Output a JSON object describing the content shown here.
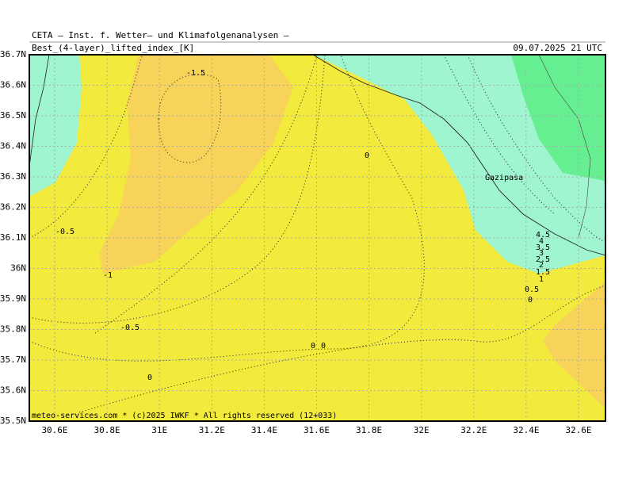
{
  "header": {
    "institute": "CETA – Inst. f. Wetter– und Klimafolgenanalysen –",
    "field": "Best_(4-layer)_lifted_index_[K]",
    "valid_time": "09.07.2025 21 UTC"
  },
  "map": {
    "lat_labels": [
      "36.7N",
      "36.6N",
      "36.5N",
      "36.4N",
      "36.3N",
      "36.2N",
      "36.1N",
      "36N",
      "35.9N",
      "35.8N",
      "35.7N",
      "35.6N",
      "35.5N"
    ],
    "lon_labels": [
      "30.6E",
      "30.8E",
      "31E",
      "31.2E",
      "31.4E",
      "31.6E",
      "31.8E",
      "32E",
      "32.2E",
      "32.4E",
      "32.6E"
    ],
    "place": "Gazipasa",
    "contour_labels": [
      "-1.5",
      "0",
      "-0.5",
      "-1",
      "-0.5",
      "0",
      "0",
      "0",
      "4.5",
      "4",
      "3.5",
      "3",
      "2.5",
      "2",
      "1.5",
      "1",
      "0.5",
      "0"
    ]
  },
  "footer": "meteo-services.com * (c)2025 IWKF * All rights reserved (12+033)"
}
